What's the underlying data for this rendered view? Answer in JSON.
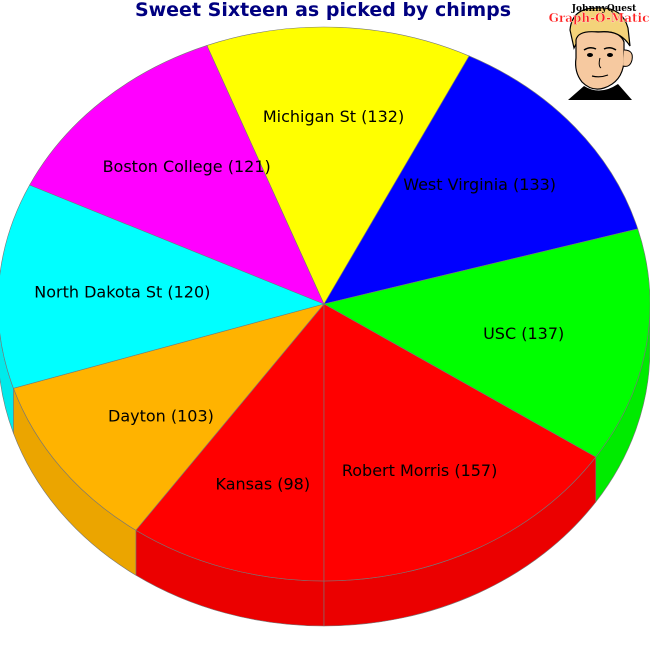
{
  "chart_data": {
    "type": "pie",
    "title": "Sweet Sixteen as picked by chimps",
    "slices": [
      {
        "label": "Kansas (98)",
        "team": "Kansas",
        "value": 98,
        "color": "#ff0000"
      },
      {
        "label": "Dayton (103)",
        "team": "Dayton",
        "value": 103,
        "color": "#ffb300"
      },
      {
        "label": "North Dakota St (120)",
        "team": "North Dakota St",
        "value": 120,
        "color": "#00ffff"
      },
      {
        "label": "Boston College (121)",
        "team": "Boston College",
        "value": 121,
        "color": "#ff00ff"
      },
      {
        "label": "Michigan St (132)",
        "team": "Michigan St",
        "value": 132,
        "color": "#ffff00"
      },
      {
        "label": "West Virginia (133)",
        "team": "West Virginia",
        "value": 133,
        "color": "#0000ff"
      },
      {
        "label": "USC (137)",
        "team": "USC",
        "value": 137,
        "color": "#00ff00"
      },
      {
        "label": "Robert Morris (157)",
        "team": "Robert Morris",
        "value": 157,
        "color": "#ff0000"
      }
    ]
  },
  "logo": {
    "line1": "JohnnyQuest",
    "line2": "Graph-O-Matic"
  }
}
